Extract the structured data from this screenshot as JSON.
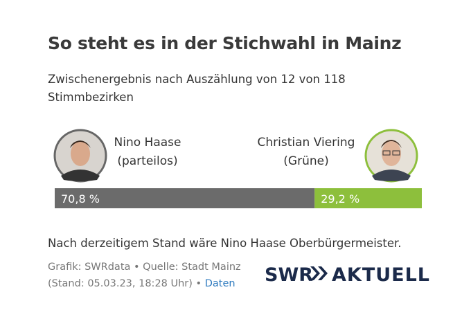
{
  "chart_data": {
    "type": "stacked-hbar",
    "title": "So steht es in der Stichwahl in Mainz",
    "subtitle": "Zwischenergebnis nach Auszählung von 12 von 118 Stimmbezirken",
    "series": [
      {
        "name": "Nino Haase",
        "party": "(parteilos)",
        "color": "#6b6b6b",
        "values": [
          70.8
        ],
        "value_labels": [
          "70,8 %"
        ]
      },
      {
        "name": "Christian Viering",
        "party": "(Grüne)",
        "color": "#8dbf3c",
        "values": [
          29.2
        ],
        "value_labels": [
          "29,2 %"
        ]
      }
    ],
    "note": "Nach derzeitigem Stand wäre Nino Haase Oberbürgermeister.",
    "source": "Grafik: SWRdata • Quelle: Stadt Mainz (Stand: 05.03.23, 18:28 Uhr) •",
    "source_link": "Daten",
    "logo": [
      "SWR",
      "AKTUELL"
    ]
  }
}
